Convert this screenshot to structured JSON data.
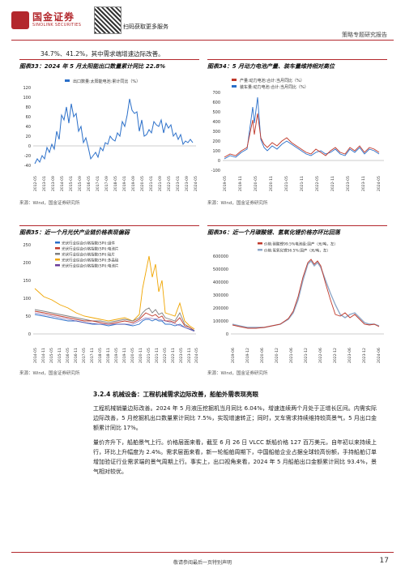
{
  "header": {
    "brand_cn": "国金证券",
    "brand_en": "SINOLINK SECURITIES",
    "qr_caption": "扫码获取更多服务",
    "report_type": "策略专题研究报告"
  },
  "lead_text": "34.7%、41.2%，其中需求端增速边际改善。",
  "figures": [
    {
      "title": "图表33：2024 年 5 月太阳能出口数量累计同比 22.8%",
      "source": "来源：Wind，国金证券研究所",
      "legend": [
        "出口数量:太阳能电池:累计同比（%）"
      ],
      "color": "#2a6fc9",
      "y_ticks": [
        "120",
        "100",
        "80",
        "60",
        "40",
        "20",
        "0",
        "-20",
        "-40"
      ],
      "x_ticks": [
        "2012-05",
        "2013-01",
        "2013-09",
        "2014-05",
        "2015-01",
        "2015-09",
        "2016-05",
        "2017-01",
        "2017-09",
        "2018-05",
        "2019-01",
        "2019-09",
        "2020-05",
        "2021-01",
        "2021-09",
        "2022-05",
        "2023-01",
        "2023-09",
        "2024-05"
      ]
    },
    {
      "title": "图表34：5 月动力电池产量、装车量维持相对高位",
      "source": "来源：Wind，国金证券研究所",
      "legend": [
        "产量:动力电池:合计:当月同比（%）",
        "装车量:动力电池:合计:当月同比（%）"
      ],
      "colors": [
        "#c0392b",
        "#2a6fc9"
      ],
      "y_ticks": [
        "700",
        "600",
        "500",
        "400",
        "300",
        "200",
        "100",
        "0",
        "-100"
      ],
      "x_ticks": [
        "2019-05",
        "2019-11",
        "2020-05",
        "2020-11",
        "2021-05",
        "2021-11",
        "2022-05",
        "2022-11",
        "2023-05",
        "2023-11",
        "2024-05"
      ]
    },
    {
      "title": "图表35：近一个月光伏产业链价格表现偏弱",
      "source": "来源：Wind，国金证券研究所",
      "legend": [
        "光伏行业综合价格指数(SPI):组件",
        "光伏行业综合价格指数(SPI):电池片",
        "光伏行业综合价格指数(SPI):硅片",
        "光伏行业综合价格指数(SPI):多晶硅",
        "光伏行业综合价格指数(SPI):电池片"
      ],
      "colors": [
        "#2a6fc9",
        "#c0392b",
        "#7f7f7f",
        "#f0a500",
        "#6a3d9a"
      ],
      "y_ticks": [
        "250",
        "200",
        "150",
        "100",
        "50",
        "0"
      ],
      "x_ticks": [
        "2014-05",
        "2014-11",
        "2015-05",
        "2015-11",
        "2016-05",
        "2016-11",
        "2017-05",
        "2017-11",
        "2018-05",
        "2018-11",
        "2019-05",
        "2019-11",
        "2020-05",
        "2020-11",
        "2021-05",
        "2021-11",
        "2022-05",
        "2022-11",
        "2023-05",
        "2023-11",
        "2024-05"
      ]
    },
    {
      "title": "图表36：近一个月碳酸锂、氢氧化锂价格亦环比回落",
      "source": "来源：Wind，国金证券研究所",
      "legend": [
        "价格:碳酸锂99.5%电池级:国产（元/吨，左）",
        "价格:氢氧化锂56.5%:国产（元/吨，左）"
      ],
      "colors": [
        "#c0392b",
        "#8fa8c8"
      ],
      "y_ticks": [
        "600000",
        "500000",
        "400000",
        "300000",
        "200000",
        "100000",
        "0"
      ],
      "x_ticks": [
        "2019-06",
        "2019-12",
        "2020-06",
        "2020-12",
        "2021-06",
        "2021-12",
        "2022-06",
        "2022-12",
        "2023-06",
        "2023-12",
        "2024-06"
      ]
    }
  ],
  "section_heading": "3.2.4 机械设备：工程机械需求边际改善，船舶外需表现亮眼",
  "paragraphs": [
    "工程机械销量边际改善。2024 年 5 月液压挖掘机当月同比 6.04%，增速连续两个月处于正增长区间。内需实际边际改善，5 月挖掘机出口数量累计同比 7.5%，实现增速转正；同时，叉车需求持续维持较高景气，5 月出口金额累计同比 17%。",
    "量价齐升下，船舶景气上行。价格层面来看，截至 6 月 26 日 VLCC 新船价格 127 百万美元，自年初以来持续上行，环比上升幅度为 2.4%。需求层面来看，新一轮船舶周期下，中国船舶企业占据全球较高份额，手持船舶订单增加验证行业需求端的景气周期上行。事实上，出口视角来看，2024 年 5 月船舶出口金额累计同比 93.4%，景气相对较优。"
  ],
  "footer": {
    "disclaimer": "敬请参阅最后一页特别声明",
    "page_number": "17"
  }
}
